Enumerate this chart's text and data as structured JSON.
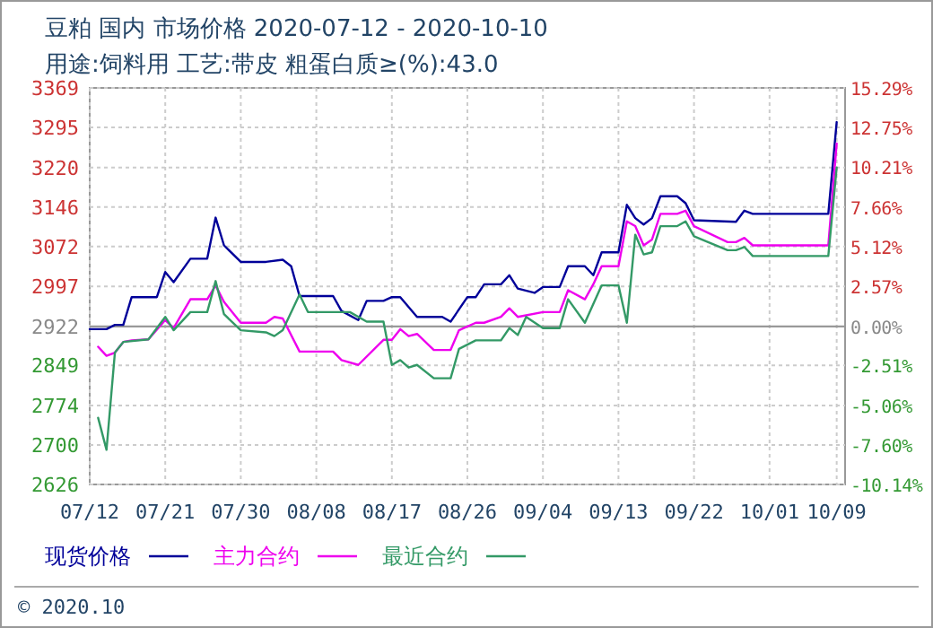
{
  "chart_data": {
    "type": "line",
    "title": "豆粕 国内 市场价格 2020-07-12 - 2020-10-10",
    "subtitle": "用途:饲料用 工艺:带皮 粗蛋白质≥(%):43.0",
    "xlim": [
      "--07-12",
      "--10-10"
    ],
    "xticks": [
      {
        "value": "--07-12",
        "label": "07/12"
      },
      {
        "value": "--07-21",
        "label": "07/21"
      },
      {
        "value": "--07-30",
        "label": "07/30"
      },
      {
        "value": "--08-08",
        "label": "08/08"
      },
      {
        "value": "--08-17",
        "label": "08/17"
      },
      {
        "value": "--08-26",
        "label": "08/26"
      },
      {
        "value": "--09-04",
        "label": "09/04"
      },
      {
        "value": "--09-13",
        "label": "09/13"
      },
      {
        "value": "--09-22",
        "label": "09/22"
      },
      {
        "value": "--10-01",
        "label": "10/01"
      },
      {
        "value": "--10-09",
        "label": "10/09"
      }
    ],
    "ylim": [
      2626,
      3369
    ],
    "yticks": [
      2626,
      2700,
      2774,
      2849,
      2922,
      2997,
      3072,
      3146,
      3220,
      3295,
      3369
    ],
    "y2lim": [
      -10.14,
      15.29
    ],
    "y2ticks": [
      {
        "value": -10.14,
        "label": "-10.14%"
      },
      {
        "value": -7.6,
        "label": "-7.60%"
      },
      {
        "value": -5.06,
        "label": "-5.06%"
      },
      {
        "value": -2.51,
        "label": "-2.51%"
      },
      {
        "value": 0,
        "label": "0.00%"
      },
      {
        "value": 2.57,
        "label": "2.57%"
      },
      {
        "value": 5.12,
        "label": "5.12%"
      },
      {
        "value": 7.66,
        "label": "7.66%"
      },
      {
        "value": 10.21,
        "label": "10.21%"
      },
      {
        "value": 12.75,
        "label": "12.75%"
      },
      {
        "value": 15.29,
        "label": "15.29%"
      }
    ],
    "grid": true,
    "legend": "bottom",
    "marker": "none",
    "line_style": "solid",
    "ref_lines": [
      {
        "axis": "y",
        "value": 2922,
        "color": "#999999"
      }
    ],
    "annotations": [
      "© 2020.10"
    ],
    "series": [
      {
        "name": "现货价格",
        "color": "#000099",
        "x": [
          "--07-12",
          "--07-14",
          "--07-15",
          "--07-16",
          "--07-17",
          "--07-20",
          "--07-21",
          "--07-22",
          "--07-24",
          "--07-26",
          "--07-27",
          "--07-28",
          "--07-30",
          "--08-02",
          "--08-04",
          "--08-05",
          "--08-06",
          "--08-10",
          "--08-11",
          "--08-13",
          "--08-14",
          "--08-16",
          "--08-17",
          "--08-18",
          "--08-20",
          "--08-23",
          "--08-24",
          "--08-26",
          "--08-27",
          "--08-28",
          "--08-30",
          "--08-31",
          "--09-01",
          "--09-03",
          "--09-04",
          "--09-06",
          "--09-07",
          "--09-09",
          "--09-10",
          "--09-11",
          "--09-13",
          "--09-14",
          "--09-15",
          "--09-16",
          "--09-17",
          "--09-18",
          "--09-20",
          "--09-21",
          "--09-22",
          "--09-27",
          "--09-28",
          "--09-29",
          "--10-08",
          "--10-09"
        ],
        "values": [
          2917,
          2917,
          2925,
          2925,
          2977,
          2977,
          3024,
          3005,
          3049,
          3049,
          3126,
          3074,
          3043,
          3043,
          3047,
          3035,
          2979,
          2979,
          2951,
          2934,
          2970,
          2970,
          2977,
          2977,
          2940,
          2940,
          2931,
          2977,
          2977,
          3001,
          3001,
          3018,
          2993,
          2985,
          2996,
          2996,
          3035,
          3035,
          3018,
          3061,
          3061,
          3150,
          3125,
          3113,
          3125,
          3166,
          3166,
          3153,
          3121,
          3118,
          3139,
          3133,
          3133,
          3305
        ]
      },
      {
        "name": "主力合约",
        "color": "#ee00ee",
        "x": [
          "--07-13",
          "--07-14",
          "--07-15",
          "--07-16",
          "--07-17",
          "--07-19",
          "--07-21",
          "--07-22",
          "--07-24",
          "--07-26",
          "--07-27",
          "--07-28",
          "--07-30",
          "--08-02",
          "--08-03",
          "--08-04",
          "--08-06",
          "--08-10",
          "--08-11",
          "--08-13",
          "--08-16",
          "--08-17",
          "--08-18",
          "--08-19",
          "--08-20",
          "--08-22",
          "--08-24",
          "--08-25",
          "--08-27",
          "--08-28",
          "--08-30",
          "--08-31",
          "--09-01",
          "--09-04",
          "--09-06",
          "--09-07",
          "--09-09",
          "--09-10",
          "--09-11",
          "--09-13",
          "--09-14",
          "--09-15",
          "--09-16",
          "--09-17",
          "--09-18",
          "--09-20",
          "--09-21",
          "--09-22",
          "--09-26",
          "--09-27",
          "--09-28",
          "--09-29",
          "--10-08",
          "--10-09"
        ],
        "values": [
          2884,
          2867,
          2873,
          2893,
          2896,
          2898,
          2934,
          2919,
          2973,
          2973,
          2999,
          2968,
          2929,
          2929,
          2940,
          2937,
          2875,
          2875,
          2859,
          2850,
          2897,
          2897,
          2917,
          2904,
          2908,
          2878,
          2878,
          2915,
          2929,
          2929,
          2940,
          2956,
          2940,
          2949,
          2949,
          2990,
          2973,
          3001,
          3035,
          3035,
          3119,
          3110,
          3074,
          3085,
          3133,
          3133,
          3139,
          3110,
          3080,
          3080,
          3088,
          3074,
          3074,
          3265
        ]
      },
      {
        "name": "最近合约",
        "color": "#339966",
        "x": [
          "--07-13",
          "--07-14",
          "--07-15",
          "--07-16",
          "--07-19",
          "--07-21",
          "--07-22",
          "--07-24",
          "--07-26",
          "--07-27",
          "--07-28",
          "--07-30",
          "--08-02",
          "--08-03",
          "--08-04",
          "--08-06",
          "--08-07",
          "--08-12",
          "--08-14",
          "--08-16",
          "--08-17",
          "--08-18",
          "--08-19",
          "--08-20",
          "--08-22",
          "--08-24",
          "--08-25",
          "--08-27",
          "--08-30",
          "--08-31",
          "--09-01",
          "--09-02",
          "--09-04",
          "--09-06",
          "--09-07",
          "--09-09",
          "--09-11",
          "--09-13",
          "--09-14",
          "--09-15",
          "--09-16",
          "--09-17",
          "--09-18",
          "--09-20",
          "--09-21",
          "--09-22",
          "--09-26",
          "--09-27",
          "--09-28",
          "--09-29",
          "--10-08",
          "--10-09"
        ],
        "values": [
          2751,
          2691,
          2873,
          2893,
          2898,
          2940,
          2915,
          2949,
          2949,
          3007,
          2945,
          2915,
          2911,
          2904,
          2915,
          2982,
          2949,
          2949,
          2931,
          2931,
          2850,
          2859,
          2845,
          2850,
          2825,
          2825,
          2880,
          2896,
          2896,
          2919,
          2906,
          2940,
          2919,
          2919,
          2973,
          2929,
          2999,
          2999,
          2929,
          3094,
          3057,
          3061,
          3110,
          3110,
          3119,
          3091,
          3065,
          3065,
          3071,
          3054,
          3054,
          3220
        ]
      }
    ]
  }
}
